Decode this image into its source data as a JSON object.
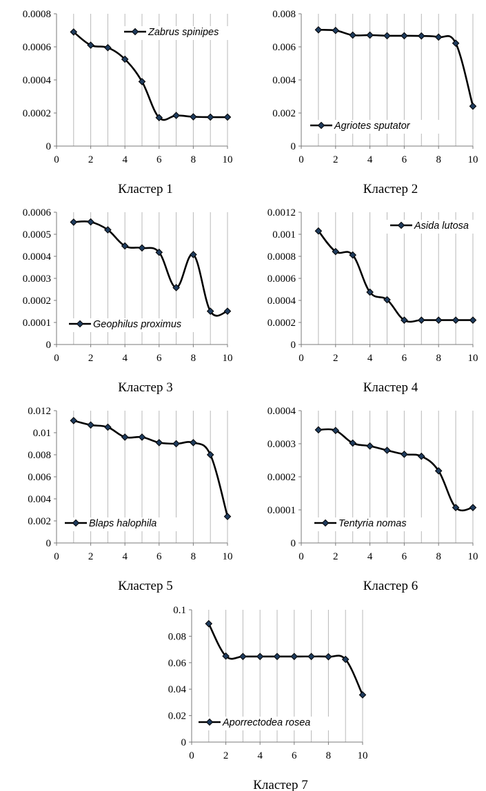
{
  "chart_data": [
    {
      "type": "line",
      "caption": "Кластер 1",
      "series": [
        {
          "name": "Zabrus spinipes",
          "x": [
            1,
            2,
            3,
            4,
            5,
            6,
            7,
            8,
            9,
            10
          ],
          "values": [
            0.00069,
            0.00061,
            0.000595,
            0.000525,
            0.00039,
            0.000172,
            0.000185,
            0.000177,
            0.000175,
            0.000175
          ]
        }
      ],
      "xlim": [
        0,
        10
      ],
      "ylim": [
        0,
        0.0008
      ],
      "xticks": [
        "0",
        "2",
        "4",
        "6",
        "8",
        "10"
      ],
      "yticks": [
        "0",
        "0.0002",
        "0.0004",
        "0.0006",
        "0.0008"
      ],
      "grid": "vertical",
      "legend": "top-right",
      "marker": "diamond",
      "smooth": true
    },
    {
      "type": "line",
      "caption": "Кластер 2",
      "series": [
        {
          "name": "Agriotes sputator",
          "x": [
            1,
            2,
            3,
            4,
            5,
            6,
            7,
            8,
            9,
            10
          ],
          "values": [
            0.00703,
            0.00699,
            0.00671,
            0.00671,
            0.00667,
            0.00667,
            0.00666,
            0.00659,
            0.00622,
            0.00241
          ]
        }
      ],
      "xlim": [
        0,
        10
      ],
      "ylim": [
        0,
        0.008
      ],
      "xticks": [
        "0",
        "2",
        "4",
        "6",
        "8",
        "10"
      ],
      "yticks": [
        "0",
        "0.002",
        "0.004",
        "0.006",
        "0.008"
      ],
      "grid": "vertical",
      "legend": "bottom-left",
      "marker": "diamond",
      "smooth": true
    },
    {
      "type": "line",
      "caption": "Кластер 3",
      "series": [
        {
          "name": "Geophilus proximus",
          "x": [
            1,
            2,
            3,
            4,
            5,
            6,
            7,
            8,
            9,
            10
          ],
          "values": [
            0.000555,
            0.000556,
            0.00052,
            0.000447,
            0.000438,
            0.000418,
            0.000258,
            0.000408,
            0.000151,
            0.000151
          ]
        }
      ],
      "xlim": [
        0,
        10
      ],
      "ylim": [
        0,
        0.0006
      ],
      "xticks": [
        "0",
        "2",
        "4",
        "6",
        "8",
        "10"
      ],
      "yticks": [
        "0",
        "0.0001",
        "0.0002",
        "0.0003",
        "0.0004",
        "0.0005",
        "0.0006"
      ],
      "grid": "vertical",
      "legend": "bottom-left",
      "marker": "diamond",
      "smooth": true
    },
    {
      "type": "line",
      "caption": "Кластер 4",
      "series": [
        {
          "name": "Asida lutosa",
          "x": [
            1,
            2,
            3,
            4,
            5,
            6,
            7,
            8,
            9,
            10
          ],
          "values": [
            0.00103,
            0.000843,
            0.000812,
            0.000475,
            0.000406,
            0.000221,
            0.000221,
            0.000221,
            0.000221,
            0.000221
          ]
        }
      ],
      "xlim": [
        0,
        10
      ],
      "ylim": [
        0,
        0.0012
      ],
      "xticks": [
        "0",
        "2",
        "4",
        "6",
        "8",
        "10"
      ],
      "yticks": [
        "0",
        "0.0002",
        "0.0004",
        "0.0006",
        "0.0008",
        "0.001",
        "0.0012"
      ],
      "grid": "vertical",
      "legend": "top-right",
      "marker": "diamond",
      "smooth": true
    },
    {
      "type": "line",
      "caption": "Кластер 5",
      "series": [
        {
          "name": "Blaps halophila",
          "x": [
            1,
            2,
            3,
            4,
            5,
            6,
            7,
            8,
            9,
            10
          ],
          "values": [
            0.0111,
            0.0107,
            0.0105,
            0.0096,
            0.0096,
            0.0091,
            0.009,
            0.0091,
            0.008,
            0.0024
          ]
        }
      ],
      "xlim": [
        0,
        10
      ],
      "ylim": [
        0,
        0.012
      ],
      "xticks": [
        "0",
        "2",
        "4",
        "6",
        "8",
        "10"
      ],
      "yticks": [
        "0",
        "0.002",
        "0.004",
        "0.006",
        "0.008",
        "0.01",
        "0.012"
      ],
      "grid": "vertical",
      "legend": "bottom-left",
      "marker": "diamond",
      "smooth": true
    },
    {
      "type": "line",
      "caption": "Кластер 6",
      "series": [
        {
          "name": "Tentyria nomas",
          "x": [
            1,
            2,
            3,
            4,
            5,
            6,
            7,
            8,
            9,
            10
          ],
          "values": [
            0.000342,
            0.00034,
            0.000302,
            0.000293,
            0.00028,
            0.000268,
            0.000262,
            0.000218,
            0.000107,
            0.000107
          ]
        }
      ],
      "xlim": [
        0,
        10
      ],
      "ylim": [
        0,
        0.0004
      ],
      "xticks": [
        "0",
        "2",
        "4",
        "6",
        "8",
        "10"
      ],
      "yticks": [
        "0",
        "0.0001",
        "0.0002",
        "0.0003",
        "0.0004"
      ],
      "grid": "vertical",
      "legend": "bottom-left",
      "marker": "diamond",
      "smooth": true
    },
    {
      "type": "line",
      "caption": "Кластер 7",
      "series": [
        {
          "name": "Aporrectodea rosea",
          "x": [
            1,
            2,
            3,
            4,
            5,
            6,
            7,
            8,
            9,
            10
          ],
          "values": [
            0.0895,
            0.065,
            0.0647,
            0.0647,
            0.0647,
            0.0647,
            0.0647,
            0.0645,
            0.0625,
            0.0357
          ]
        }
      ],
      "xlim": [
        0,
        10
      ],
      "ylim": [
        0,
        0.1
      ],
      "xticks": [
        "0",
        "2",
        "4",
        "6",
        "8",
        "10"
      ],
      "yticks": [
        "0",
        "0.02",
        "0.04",
        "0.06",
        "0.08",
        "0.1"
      ],
      "grid": "vertical",
      "legend": "bottom-left",
      "marker": "diamond",
      "smooth": true
    }
  ]
}
